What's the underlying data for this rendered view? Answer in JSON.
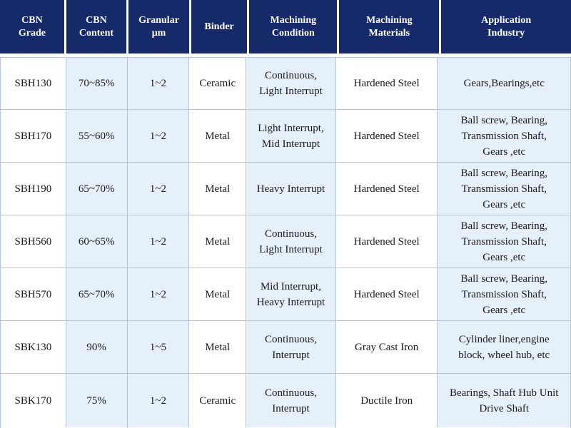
{
  "header": [
    "CBN\nGrade",
    "CBN\nContent",
    "Granular\nμm",
    "Binder",
    "Machining\nCondition",
    "Machining\nMaterials",
    "Application\nIndustry"
  ],
  "rows": [
    [
      "SBH130",
      "70~85%",
      "1~2",
      "Ceramic",
      "Continuous,\nLight Interrupt",
      "Hardened Steel",
      "Gears,Bearings,etc"
    ],
    [
      "SBH170",
      "55~60%",
      "1~2",
      "Metal",
      "Light Interrupt,\nMid Interrupt",
      "Hardened Steel",
      "Ball screw, Bearing,\nTransmission Shaft,\nGears ,etc"
    ],
    [
      "SBH190",
      "65~70%",
      "1~2",
      "Metal",
      "Heavy Interrupt",
      "Hardened Steel",
      "Ball screw, Bearing,\nTransmission Shaft,\nGears ,etc"
    ],
    [
      "SBH560",
      "60~65%",
      "1~2",
      "Metal",
      "Continuous,\nLight Interrupt",
      "Hardened Steel",
      "Ball screw, Bearing,\nTransmission Shaft,\nGears ,etc"
    ],
    [
      "SBH570",
      "65~70%",
      "1~2",
      "Metal",
      "Mid Interrupt,\nHeavy Interrupt",
      "Hardened Steel",
      "Ball screw, Bearing,\nTransmission Shaft,\nGears ,etc"
    ],
    [
      "SBK130",
      "90%",
      "1~5",
      "Metal",
      "Continuous,\nInterrupt",
      "Gray Cast Iron",
      "Cylinder liner,engine\nblock, wheel hub, etc"
    ],
    [
      "SBK170",
      "75%",
      "1~2",
      "Ceramic",
      "Continuous,\nInterrupt",
      "Ductile Iron",
      "Bearings, Shaft Hub Unit\nDrive Shaft"
    ]
  ],
  "colors": {
    "header_bg": "#162a6a",
    "header_text": "#ffffff",
    "shaded_cell": "#e6f0fb",
    "grid_line": "#b9c4d6"
  }
}
